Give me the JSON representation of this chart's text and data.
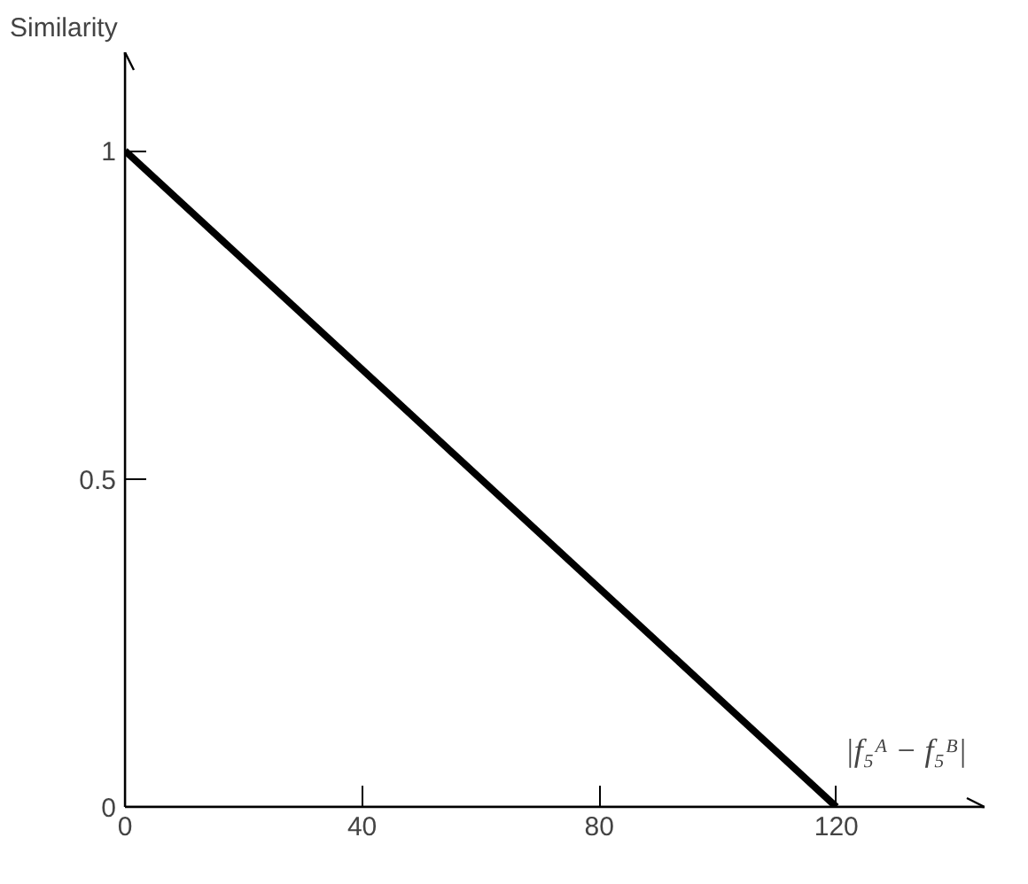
{
  "chart_data": {
    "type": "line",
    "ylabel": "Similarity",
    "xlabel": "|f₅ᴬ − f₅ᴮ|",
    "x": [
      0,
      120
    ],
    "series": [
      {
        "color": "#000000",
        "values": [
          1,
          0
        ]
      }
    ],
    "xlim": [
      0,
      145
    ],
    "ylim": [
      0,
      1.15
    ],
    "xticks": [
      0,
      40,
      80,
      120
    ],
    "yticks": [
      0,
      0.5,
      1
    ],
    "grid": false,
    "marker": "none",
    "line_style": "solid"
  }
}
